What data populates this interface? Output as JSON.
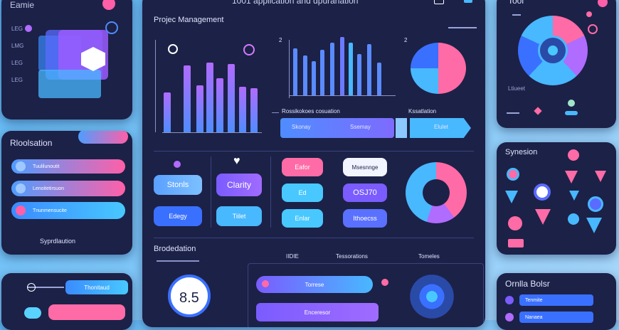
{
  "header": {
    "left_title": "Eamie",
    "center_title": "1001 application and dpuranation",
    "top_right_title": "Tool"
  },
  "main": {
    "section_title": "Projec Management",
    "axis_label_left": "2",
    "axis_label_right": "2",
    "pipeline_left_label": "Rossikokoes cosuation",
    "pipeline_right_label": "Kssatlation",
    "pipeline_items": [
      "Skonay",
      "Ssemay",
      "Elulet"
    ],
    "cards": [
      "Stonls",
      "Clarity",
      "Edegy",
      "Tiilet"
    ],
    "mid_buttons": [
      "Eafor",
      "Ed",
      "Enlar"
    ],
    "mid_right_buttons": [
      "Msesnnge",
      "OSJ70",
      "Ithoecss"
    ],
    "bottom_title": "Brodedation",
    "bottom_cols": [
      "IIDIE",
      "Tessorations",
      "Tomeles"
    ],
    "score": "8.5",
    "bottom_pills": [
      "Torrese",
      "Enceresor"
    ]
  },
  "left": {
    "list_labels": [
      "LEG",
      "LMG",
      "LEG",
      "LEG"
    ],
    "relation_title": "Rloolsation",
    "relation_items": [
      "Tuulilunoutit",
      "Lenoitetirsuon",
      "Tnunmensucite"
    ],
    "relation_footer": "Syprdlaution",
    "bottom_pill": "Thonitaud"
  },
  "right": {
    "synesion_title": "Synesion",
    "bottom_title": "Ornlla Bolsr",
    "bottom_items": [
      "Tenmite",
      "Nanaea"
    ],
    "legend": [
      "Ltiueet"
    ]
  },
  "colors": {
    "panel_bg": "#1c2147",
    "accent_pink": "#ff5fa8",
    "accent_blue": "#4f8dff",
    "accent_purple": "#8a5cff"
  }
}
